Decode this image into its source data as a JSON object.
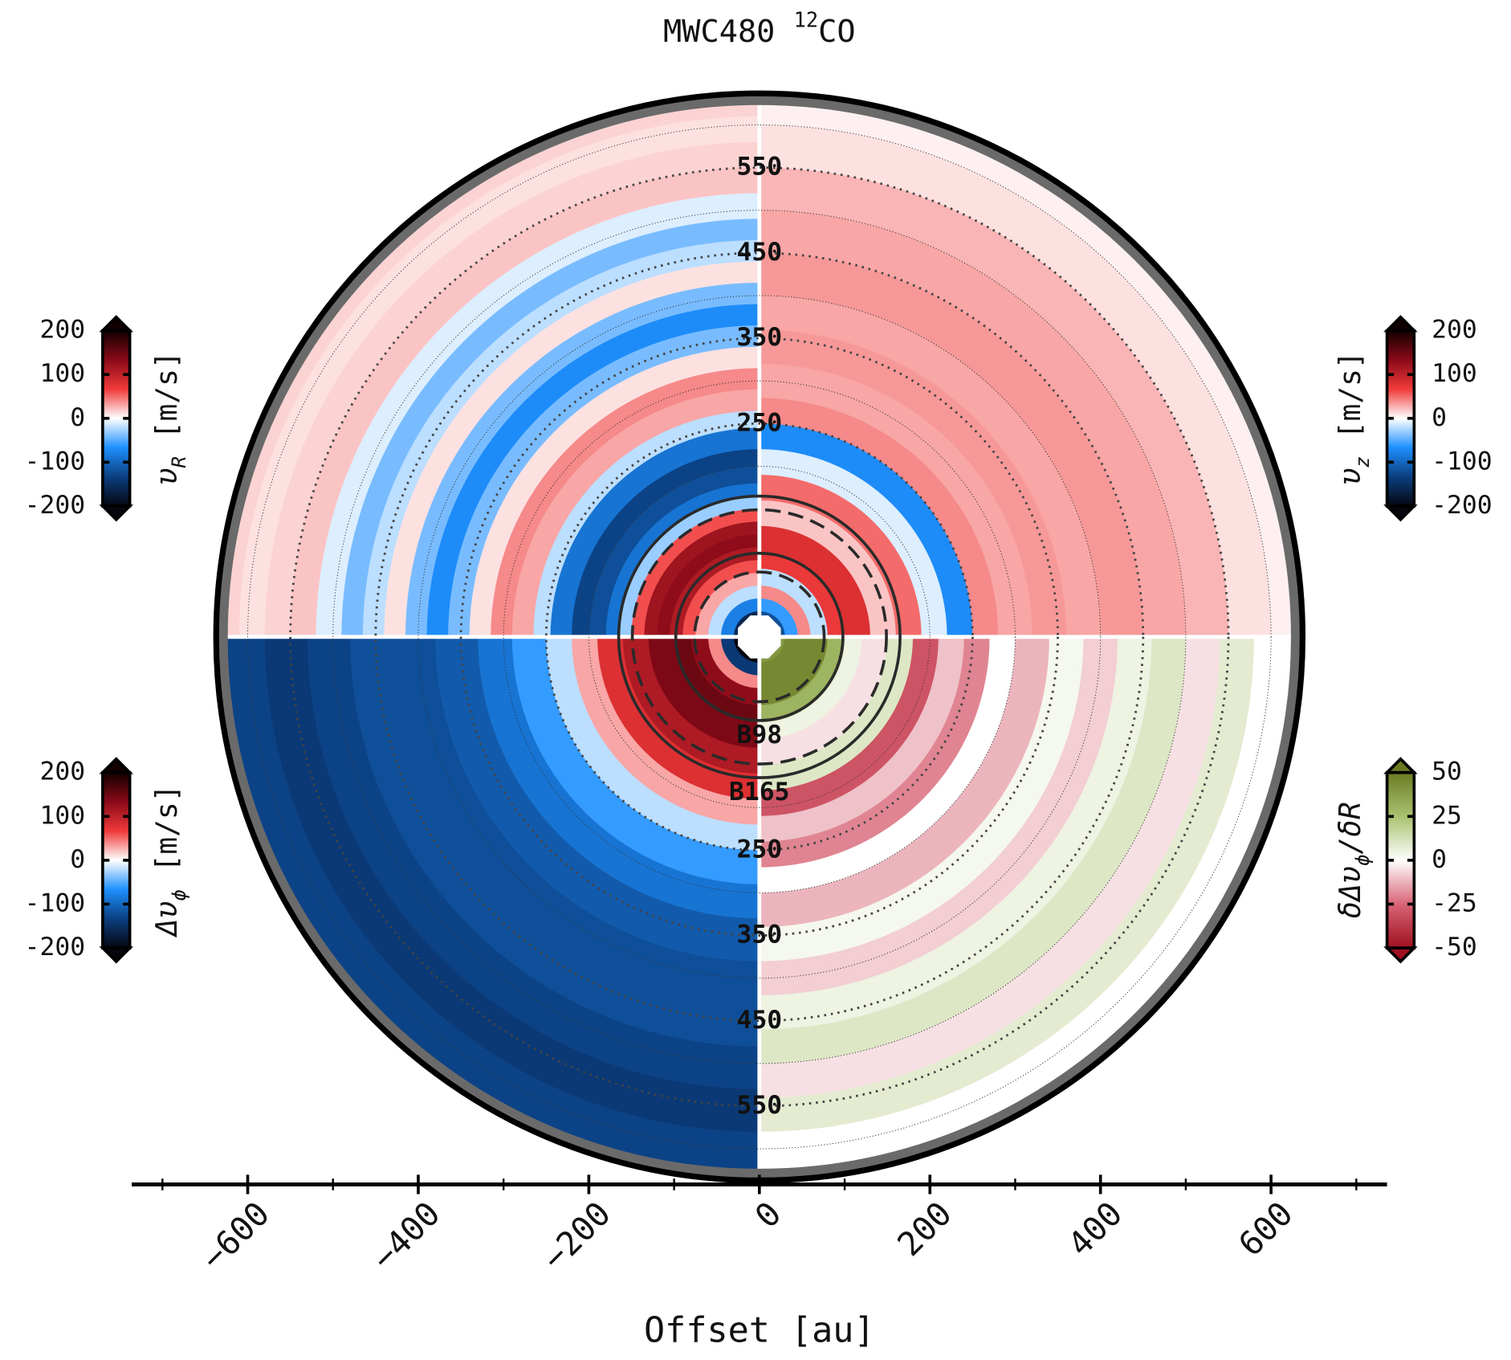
{
  "chart_data": {
    "type": "polar-quadrants",
    "title": "MWC480 ",
    "title_sup": "12",
    "title_end": "CO",
    "xlabel": "Offset [au]",
    "xlim": [
      -736,
      736
    ],
    "xticks": [
      {
        "value": -600,
        "label": "−600"
      },
      {
        "value": -400,
        "label": "−400"
      },
      {
        "value": -200,
        "label": "−200"
      },
      0,
      200,
      400,
      600
    ],
    "xticks_minor": [
      -700,
      -500,
      -300,
      -100,
      100,
      300,
      500,
      700
    ],
    "disk_radius": 637,
    "ring_labels_top": [
      250,
      350,
      450,
      550
    ],
    "ring_labels_bottom": [
      250,
      350,
      450,
      550
    ],
    "rings": [
      {
        "label": "B98",
        "radius": 98
      },
      {
        "label": "B165",
        "radius": 165
      }
    ],
    "gaps": [
      76,
      149
    ],
    "grid_radii": [
      200,
      300,
      400,
      500,
      600
    ],
    "panels": [
      {
        "quadrant": "top-left",
        "label": [
          {
            "text": "υ"
          },
          {
            "text": "R",
            "sub": true
          },
          {
            "text": " [m/s]"
          }
        ],
        "vlim": [
          -200,
          200
        ],
        "ticks": [
          -200,
          -100,
          0,
          100,
          200
        ],
        "cmap": [
          "#06060f",
          "#0b3f80",
          "#1e90ff",
          "#ffffff",
          "#f03a3a",
          "#8a0a18",
          "#120000"
        ],
        "radii": [
          30,
          45,
          60,
          75,
          90,
          105,
          120,
          135,
          150,
          165,
          180,
          200,
          220,
          245,
          265,
          290,
          315,
          340,
          365,
          390,
          415,
          440,
          465,
          490,
          520,
          550,
          580,
          610,
          637
        ],
        "values": [
          -160,
          -80,
          -20,
          30,
          60,
          110,
          130,
          120,
          60,
          -30,
          -90,
          -120,
          -130,
          -90,
          -20,
          30,
          40,
          10,
          -40,
          -70,
          -40,
          10,
          -20,
          -40,
          -10,
          20,
          15,
          10,
          15
        ]
      },
      {
        "quadrant": "top-right",
        "label": [
          {
            "text": "υ"
          },
          {
            "text": "z",
            "sub": true
          },
          {
            "text": " [m/s]"
          }
        ],
        "vlim": [
          -200,
          200
        ],
        "ticks": [
          -200,
          -100,
          0,
          100,
          200
        ],
        "cmap": [
          "#06060f",
          "#0b3f80",
          "#1e90ff",
          "#ffffff",
          "#f03a3a",
          "#8a0a18",
          "#120000"
        ],
        "radii": [
          30,
          45,
          60,
          80,
          100,
          130,
          160,
          190,
          220,
          250,
          280,
          320,
          360,
          400,
          450,
          500,
          550,
          600,
          637
        ],
        "values": [
          -120,
          -60,
          40,
          -20,
          70,
          80,
          20,
          50,
          -10,
          -70,
          40,
          30,
          35,
          30,
          35,
          30,
          25,
          10,
          5
        ]
      },
      {
        "quadrant": "bottom-left",
        "label": [
          {
            "text": "Δυ"
          },
          {
            "text": "ϕ",
            "sub": true
          },
          {
            "text": " [m/s]"
          }
        ],
        "vlim": [
          -200,
          200
        ],
        "ticks": [
          -200,
          -100,
          0,
          100,
          200
        ],
        "cmap": [
          "#06060f",
          "#0b3f80",
          "#1e90ff",
          "#ffffff",
          "#f03a3a",
          "#8a0a18",
          "#120000"
        ],
        "radii": [
          30,
          45,
          60,
          80,
          100,
          130,
          160,
          190,
          220,
          250,
          290,
          330,
          380,
          430,
          480,
          530,
          580,
          637
        ],
        "values": [
          -200,
          -140,
          40,
          130,
          150,
          140,
          110,
          80,
          30,
          -20,
          -60,
          -90,
          -110,
          -120,
          -120,
          -130,
          -140,
          -130
        ]
      },
      {
        "quadrant": "bottom-right",
        "label": [
          {
            "text": "δΔυ"
          },
          {
            "text": "ϕ",
            "sub": true
          },
          {
            "text": "/δR"
          }
        ],
        "vlim": [
          -50,
          50
        ],
        "ticks": [
          -50,
          -25,
          0,
          25,
          50
        ],
        "cmap": [
          "#a01020",
          "#d86575",
          "#ffffff",
          "#aac270",
          "#6a7a22"
        ],
        "radii": [
          30,
          80,
          100,
          120,
          150,
          180,
          210,
          240,
          270,
          300,
          340,
          380,
          420,
          460,
          500,
          540,
          580,
          637
        ],
        "values": [
          40,
          45,
          30,
          5,
          -5,
          10,
          -30,
          -10,
          -20,
          0,
          -12,
          3,
          -8,
          5,
          10,
          -5,
          8,
          0
        ]
      }
    ]
  }
}
